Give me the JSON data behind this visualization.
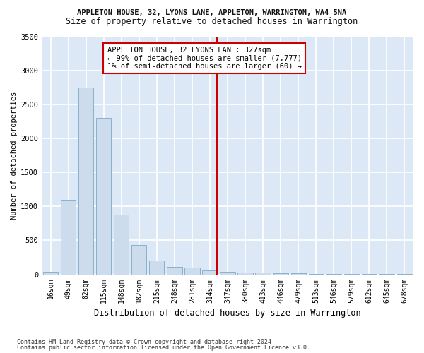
{
  "title": "APPLETON HOUSE, 32, LYONS LANE, APPLETON, WARRINGTON, WA4 5NA",
  "subtitle": "Size of property relative to detached houses in Warrington",
  "xlabel": "Distribution of detached houses by size in Warrington",
  "ylabel": "Number of detached properties",
  "bar_color": "#cddcec",
  "bar_edge_color": "#7aaac8",
  "background_color": "#dce8f5",
  "fig_background_color": "#ffffff",
  "grid_color": "#ffffff",
  "annotation_line_color": "#cc0000",
  "annotation_box_color": "#cc0000",
  "annotation_text": "APPLETON HOUSE, 32 LYONS LANE: 327sqm\n← 99% of detached houses are smaller (7,777)\n1% of semi-detached houses are larger (60) →",
  "property_size": 327,
  "categories": [
    "16sqm",
    "49sqm",
    "82sqm",
    "115sqm",
    "148sqm",
    "182sqm",
    "215sqm",
    "248sqm",
    "281sqm",
    "314sqm",
    "347sqm",
    "380sqm",
    "413sqm",
    "446sqm",
    "479sqm",
    "513sqm",
    "546sqm",
    "579sqm",
    "612sqm",
    "645sqm",
    "678sqm"
  ],
  "values": [
    40,
    1100,
    2750,
    2300,
    880,
    430,
    200,
    105,
    95,
    55,
    40,
    30,
    25,
    18,
    15,
    10,
    8,
    5,
    4,
    3,
    2
  ],
  "ylim": [
    0,
    3500
  ],
  "yticks": [
    0,
    500,
    1000,
    1500,
    2000,
    2500,
    3000,
    3500
  ],
  "footer1": "Contains HM Land Registry data © Crown copyright and database right 2024.",
  "footer2": "Contains public sector information licensed under the Open Government Licence v3.0.",
  "bar_width": 0.85,
  "title_fontsize": 7.5,
  "subtitle_fontsize": 8.5,
  "xlabel_fontsize": 8.5,
  "ylabel_fontsize": 7.5,
  "tick_fontsize": 7,
  "annotation_fontsize": 7.5,
  "footer_fontsize": 6
}
